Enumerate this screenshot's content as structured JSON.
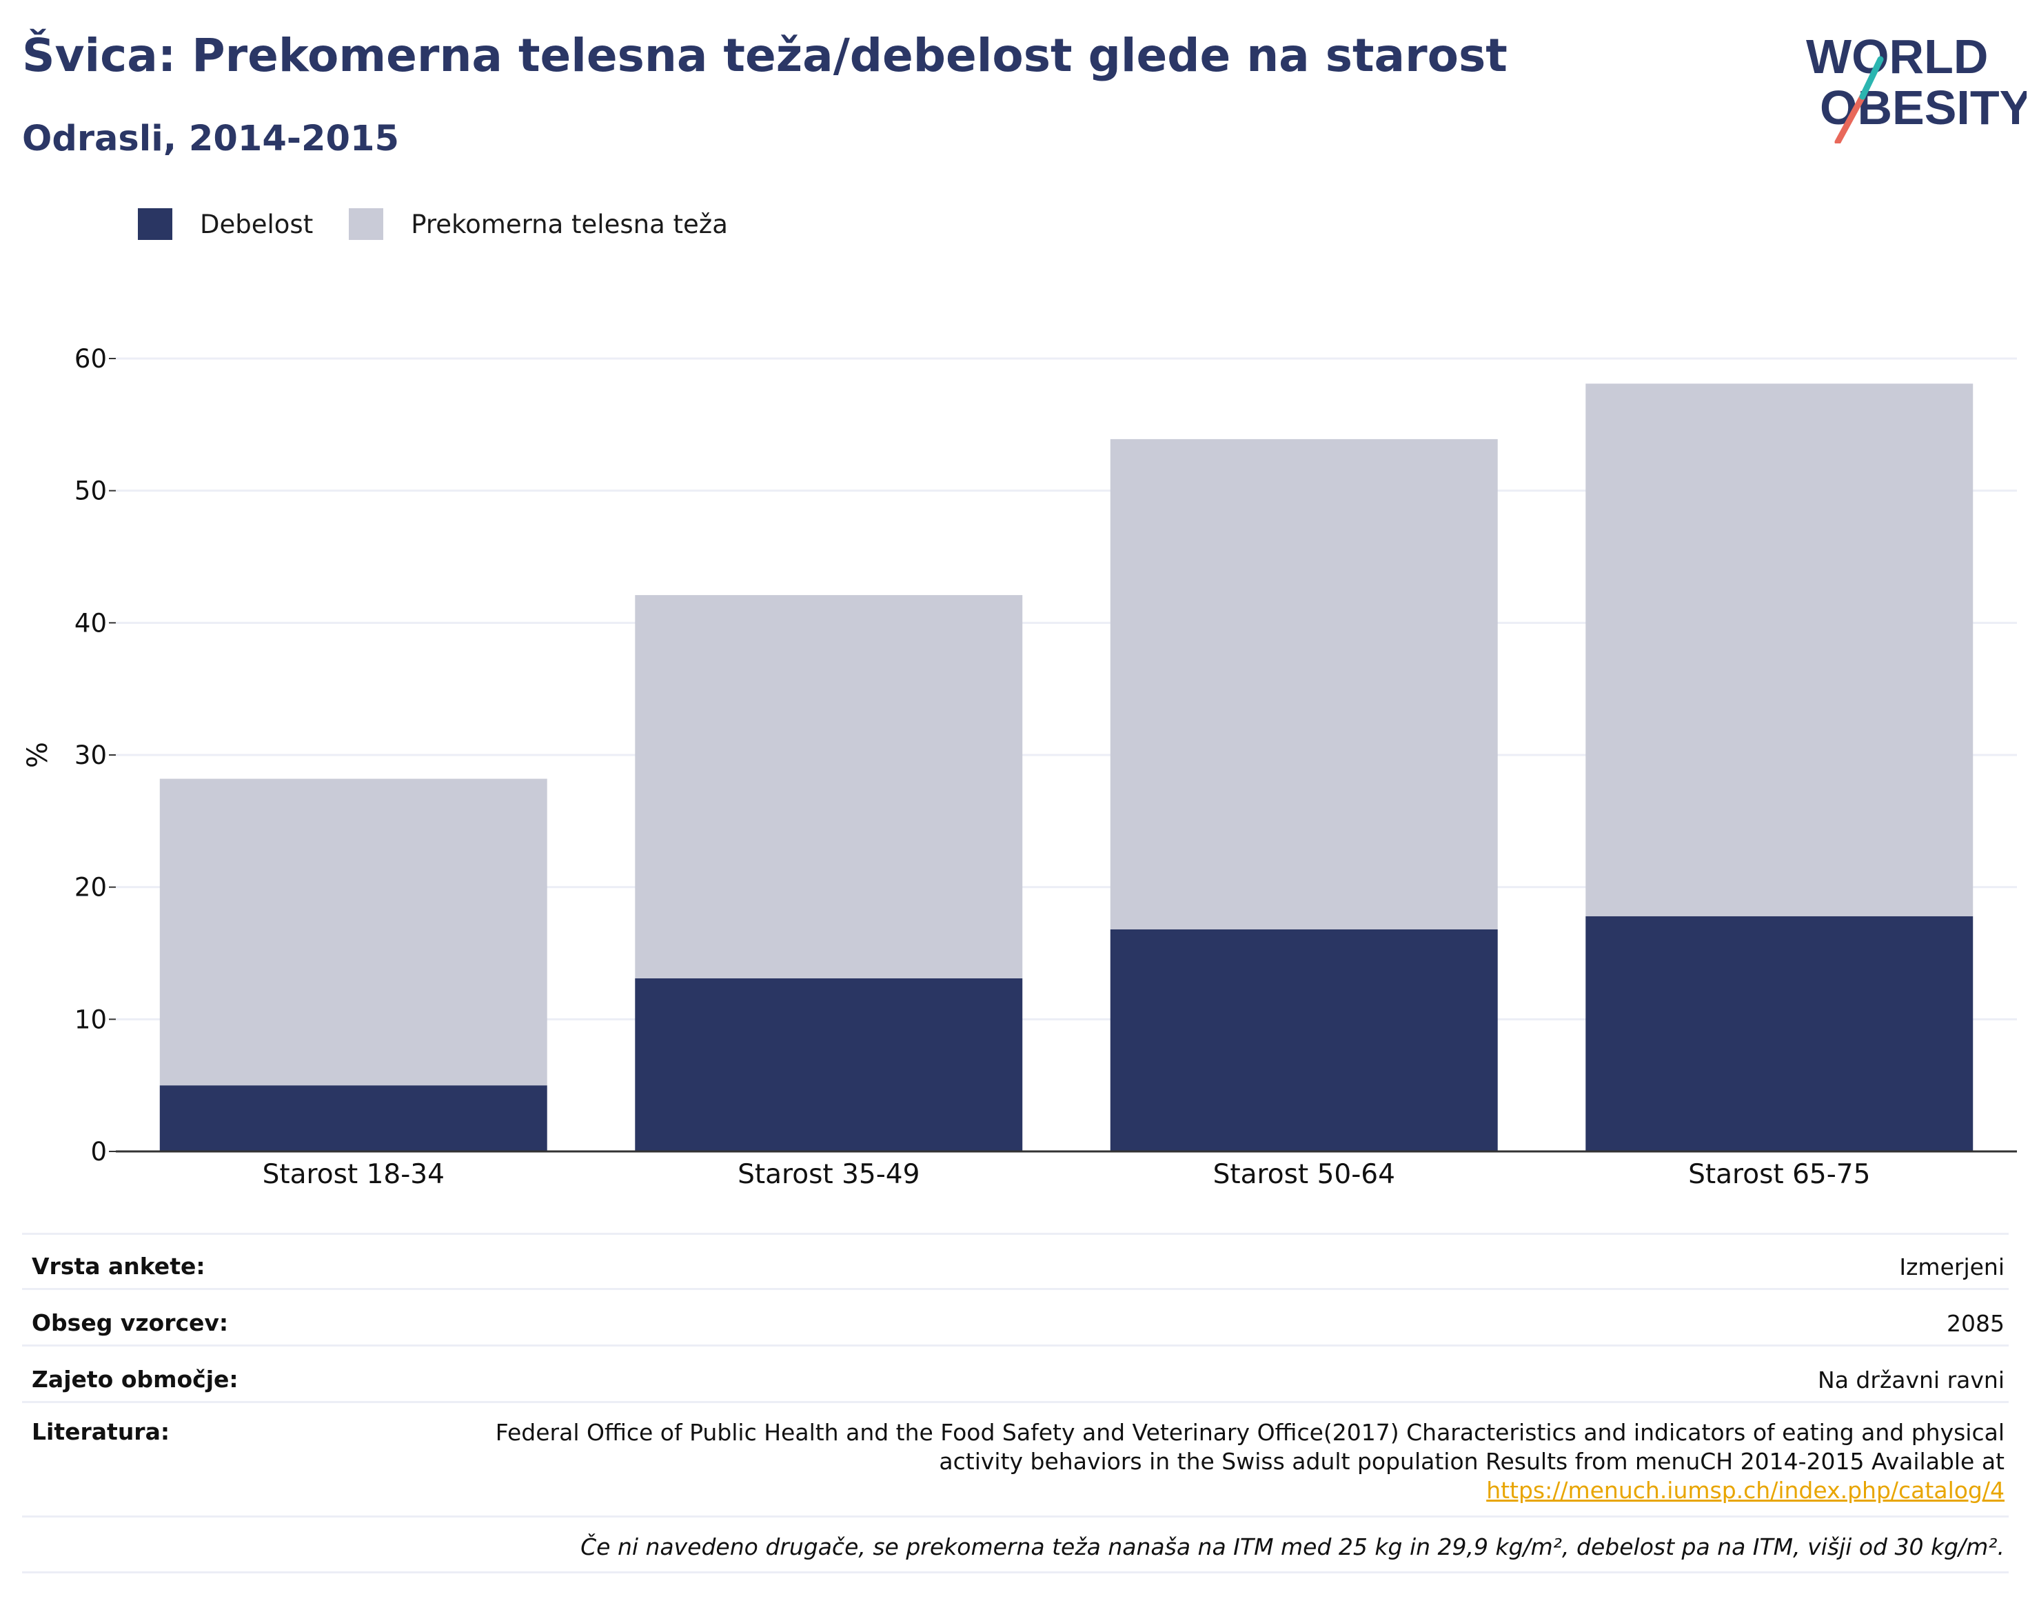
{
  "title": "Švica: Prekomerna telesna teža/debelost glede na starost",
  "subtitle": "Odrasli, 2014-2015",
  "logo": {
    "line1": "WORLD",
    "line2": "OBESITY"
  },
  "colors": {
    "obesity": "#2a3663",
    "overweight": "#c9cbd7",
    "title": "#2b3766",
    "grid": "#eceef6",
    "axis": "#333333",
    "link": "#e8a500"
  },
  "legend": [
    {
      "label": "Debelost",
      "color": "#2a3663"
    },
    {
      "label": "Prekomerna telesna teža",
      "color": "#c9cbd7"
    }
  ],
  "chart_data": {
    "type": "bar",
    "stacked": true,
    "categories": [
      "Starost 18-34",
      "Starost 35-49",
      "Starost 50-64",
      "Starost 65-75"
    ],
    "series": [
      {
        "name": "Debelost",
        "values": [
          5.0,
          13.1,
          16.8,
          17.8
        ]
      },
      {
        "name": "Prekomerna telesna teža",
        "values": [
          23.2,
          29.0,
          37.1,
          40.3
        ]
      }
    ],
    "ylabel": "%",
    "ylim": [
      0,
      60
    ],
    "yticks": [
      0,
      10,
      20,
      30,
      40,
      50,
      60
    ],
    "grid": true,
    "legend_position": "top-left"
  },
  "info": {
    "survey_type_label": "Vrsta ankete:",
    "survey_type_value": "Izmerjeni",
    "sample_label": "Obseg vzorcev:",
    "sample_value": "2085",
    "area_label": "Zajeto območje:",
    "area_value": "Na državni ravni",
    "reference_label": "Literatura:",
    "reference_line1": "Federal Office of Public Health and the Food Safety and Veterinary Office(2017) Characteristics and indicators of eating and physical",
    "reference_line2": "activity behaviors in the Swiss adult population Results from menuCH 2014-2015 Available at",
    "reference_link": "https://menuch.iumsp.ch/index.php/catalog/4",
    "note": "Če ni navedeno drugače, se prekomerna teža nanaša na ITM med 25 kg in 29,9 kg/m², debelost pa na ITM, višji od 30 kg/m²."
  }
}
